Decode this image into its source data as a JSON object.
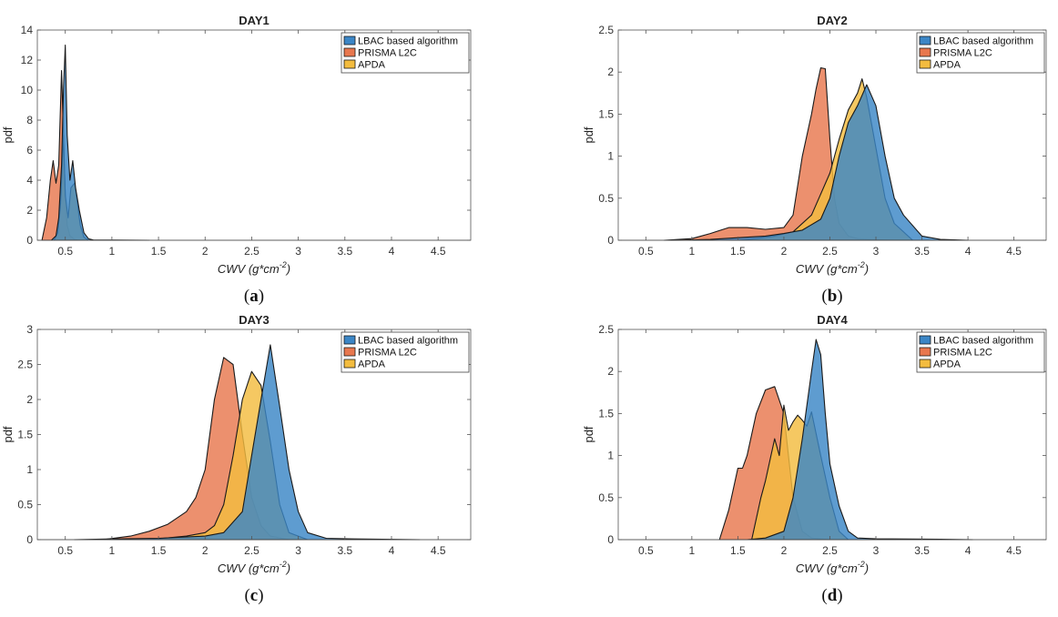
{
  "colors": {
    "lbac": "#3b86c6",
    "prisma": "#e8774e",
    "apda": "#f3bc3f",
    "outline": "#1a1a1a",
    "axis": "#555555"
  },
  "chart_data": [
    {
      "type": "area",
      "panel": "a",
      "caption": "(a)",
      "title": "DAY1",
      "xlabel": "CWV (g*cm",
      "xlabel_sup": "-2",
      "xlabel_close": ")",
      "ylabel": "pdf",
      "xlim": [
        0.2,
        4.85
      ],
      "ylim": [
        0,
        14
      ],
      "xticks": [
        0.5,
        1,
        1.5,
        2,
        2.5,
        3,
        3.5,
        4,
        4.5
      ],
      "xtick_labels": [
        "0.5",
        "1",
        "1.5",
        "2",
        "2.5",
        "3",
        "3.5",
        "4",
        "4.5"
      ],
      "yticks": [
        0,
        2,
        4,
        6,
        8,
        10,
        12,
        14
      ],
      "ytick_labels": [
        "0",
        "2",
        "4",
        "6",
        "8",
        "10",
        "12",
        "14"
      ],
      "legend_position": "top-right",
      "series": [
        {
          "key": "lbac",
          "name": "LBAC based algorithm",
          "x": [
            0.35,
            0.4,
            0.43,
            0.46,
            0.48,
            0.5,
            0.52,
            0.55,
            0.58,
            0.61,
            0.65,
            0.7,
            0.75,
            0.8,
            1.0,
            1.4
          ],
          "y": [
            0,
            0.3,
            1.5,
            5,
            10,
            13,
            7,
            4,
            5.3,
            3.5,
            2,
            0.5,
            0.1,
            0.02,
            0.01,
            0
          ]
        },
        {
          "key": "prisma",
          "name": "PRISMA L2C",
          "x": [
            0.25,
            0.3,
            0.34,
            0.37,
            0.4,
            0.43,
            0.46,
            0.48,
            0.5,
            0.52,
            0.55,
            0.6,
            0.65
          ],
          "y": [
            0,
            1.5,
            4,
            5.3,
            3.8,
            5,
            11.3,
            7,
            3,
            1,
            0.3,
            0.05,
            0
          ]
        },
        {
          "key": "apda",
          "name": "APDA",
          "x": [
            0.38,
            0.42,
            0.45,
            0.48,
            0.5,
            0.53,
            0.56,
            0.6,
            0.63,
            0.66,
            0.7,
            0.75
          ],
          "y": [
            0,
            0.5,
            2.5,
            7,
            3,
            1.5,
            3.5,
            3.8,
            2.5,
            1,
            0.2,
            0
          ]
        }
      ]
    },
    {
      "type": "area",
      "panel": "b",
      "caption": "(b)",
      "title": "DAY2",
      "xlabel": "CWV (g*cm",
      "xlabel_sup": "-2",
      "xlabel_close": ")",
      "ylabel": "pdf",
      "xlim": [
        0.2,
        4.85
      ],
      "ylim": [
        0,
        2.5
      ],
      "xticks": [
        0.5,
        1,
        1.5,
        2,
        2.5,
        3,
        3.5,
        4,
        4.5
      ],
      "xtick_labels": [
        "0.5",
        "1",
        "1.5",
        "2",
        "2.5",
        "3",
        "3.5",
        "4",
        "4.5"
      ],
      "yticks": [
        0,
        0.5,
        1,
        1.5,
        2,
        2.5
      ],
      "ytick_labels": [
        "0",
        "0.5",
        "1",
        "1.5",
        "2",
        "2.5"
      ],
      "legend_position": "top-right",
      "series": [
        {
          "key": "lbac",
          "name": "LBAC based algorithm",
          "x": [
            0.8,
            1.2,
            1.5,
            1.8,
            2.0,
            2.2,
            2.4,
            2.5,
            2.6,
            2.7,
            2.8,
            2.9,
            3.0,
            3.1,
            3.2,
            3.3,
            3.5,
            3.7,
            4.0
          ],
          "y": [
            0,
            0.01,
            0.03,
            0.05,
            0.08,
            0.12,
            0.25,
            0.5,
            1.0,
            1.4,
            1.6,
            1.85,
            1.6,
            1.0,
            0.5,
            0.3,
            0.05,
            0.01,
            0
          ]
        },
        {
          "key": "prisma",
          "name": "PRISMA L2C",
          "x": [
            0.7,
            1.0,
            1.2,
            1.4,
            1.6,
            1.8,
            2.0,
            2.1,
            2.2,
            2.3,
            2.35,
            2.4,
            2.45,
            2.5,
            2.55,
            2.6,
            2.7,
            2.8,
            3.0,
            3.2
          ],
          "y": [
            0,
            0.02,
            0.08,
            0.15,
            0.15,
            0.13,
            0.15,
            0.3,
            1.0,
            1.5,
            1.8,
            2.05,
            2.04,
            1.2,
            0.5,
            0.2,
            0.05,
            0.02,
            0.005,
            0
          ]
        },
        {
          "key": "apda",
          "name": "APDA",
          "x": [
            1.5,
            1.7,
            1.9,
            2.1,
            2.3,
            2.5,
            2.6,
            2.7,
            2.8,
            2.85,
            2.9,
            3.0,
            3.1,
            3.2,
            3.4
          ],
          "y": [
            0,
            0.02,
            0.05,
            0.1,
            0.3,
            0.8,
            1.2,
            1.55,
            1.75,
            1.92,
            1.7,
            1.1,
            0.5,
            0.2,
            0
          ]
        }
      ]
    },
    {
      "type": "area",
      "panel": "c",
      "caption": "(c)",
      "title": "DAY3",
      "xlabel": "CWV (g*cm",
      "xlabel_sup": "-2",
      "xlabel_close": ")",
      "ylabel": "pdf",
      "xlim": [
        0.2,
        4.85
      ],
      "ylim": [
        0,
        3
      ],
      "xticks": [
        0.5,
        1,
        1.5,
        2,
        2.5,
        3,
        3.5,
        4,
        4.5
      ],
      "xtick_labels": [
        "0.5",
        "1",
        "1.5",
        "2",
        "2.5",
        "3",
        "3.5",
        "4",
        "4.5"
      ],
      "yticks": [
        0,
        0.5,
        1,
        1.5,
        2,
        2.5,
        3
      ],
      "ytick_labels": [
        "0",
        "0.5",
        "1",
        "1.5",
        "2",
        "2.5",
        "3"
      ],
      "legend_position": "top-right",
      "series": [
        {
          "key": "lbac",
          "name": "LBAC based algorithm",
          "x": [
            0.6,
            1.0,
            1.5,
            2.0,
            2.2,
            2.4,
            2.5,
            2.6,
            2.7,
            2.8,
            2.9,
            3.0,
            3.1,
            3.3,
            3.6,
            4.3
          ],
          "y": [
            0,
            0.01,
            0.02,
            0.05,
            0.1,
            0.4,
            1.2,
            2.0,
            2.78,
            1.9,
            1.0,
            0.4,
            0.1,
            0.02,
            0.01,
            0
          ]
        },
        {
          "key": "prisma",
          "name": "PRISMA L2C",
          "x": [
            0.9,
            1.2,
            1.4,
            1.6,
            1.8,
            1.9,
            2.0,
            2.1,
            2.2,
            2.3,
            2.4,
            2.5,
            2.6,
            2.7,
            2.9
          ],
          "y": [
            0,
            0.05,
            0.12,
            0.22,
            0.4,
            0.6,
            1.0,
            2.0,
            2.6,
            2.5,
            1.5,
            0.6,
            0.2,
            0.05,
            0
          ]
        },
        {
          "key": "apda",
          "name": "APDA",
          "x": [
            1.4,
            1.8,
            2.0,
            2.1,
            2.2,
            2.3,
            2.4,
            2.5,
            2.6,
            2.7,
            2.8,
            2.9,
            3.1
          ],
          "y": [
            0,
            0.05,
            0.1,
            0.2,
            0.5,
            1.2,
            2.0,
            2.4,
            2.2,
            1.4,
            0.5,
            0.1,
            0
          ]
        }
      ]
    },
    {
      "type": "area",
      "panel": "d",
      "caption": "(d)",
      "title": "DAY4",
      "xlabel": "CWV (g*cm",
      "xlabel_sup": "-2",
      "xlabel_close": ")",
      "ylabel": "pdf",
      "xlim": [
        0.2,
        4.85
      ],
      "ylim": [
        0,
        2.5
      ],
      "xticks": [
        0.5,
        1,
        1.5,
        2,
        2.5,
        3,
        3.5,
        4,
        4.5
      ],
      "xtick_labels": [
        "0.5",
        "1",
        "1.5",
        "2",
        "2.5",
        "3",
        "3.5",
        "4",
        "4.5"
      ],
      "yticks": [
        0,
        0.5,
        1,
        1.5,
        2,
        2.5
      ],
      "ytick_labels": [
        "0",
        "0.5",
        "1",
        "1.5",
        "2",
        "2.5"
      ],
      "legend_position": "top-right",
      "series": [
        {
          "key": "lbac",
          "name": "LBAC based algorithm",
          "x": [
            1.6,
            1.8,
            2.0,
            2.1,
            2.2,
            2.3,
            2.35,
            2.4,
            2.45,
            2.5,
            2.6,
            2.7,
            2.8,
            3.0,
            3.7,
            4.05
          ],
          "y": [
            0,
            0.02,
            0.1,
            0.5,
            1.2,
            2.0,
            2.38,
            2.2,
            1.5,
            0.9,
            0.4,
            0.1,
            0.02,
            0.01,
            0.005,
            0
          ]
        },
        {
          "key": "prisma",
          "name": "PRISMA L2C",
          "x": [
            1.3,
            1.4,
            1.5,
            1.55,
            1.6,
            1.7,
            1.8,
            1.9,
            2.0,
            2.1,
            2.2,
            2.3,
            2.5
          ],
          "y": [
            0,
            0.35,
            0.85,
            0.85,
            1.0,
            1.5,
            1.78,
            1.82,
            1.5,
            0.5,
            0.1,
            0.02,
            0
          ]
        },
        {
          "key": "apda",
          "name": "APDA",
          "x": [
            1.65,
            1.75,
            1.8,
            1.9,
            1.95,
            2.0,
            2.05,
            2.1,
            2.15,
            2.2,
            2.25,
            2.3,
            2.4,
            2.5,
            2.6,
            2.7
          ],
          "y": [
            0,
            0.5,
            0.7,
            1.2,
            1.0,
            1.6,
            1.3,
            1.4,
            1.48,
            1.42,
            1.35,
            1.52,
            1.0,
            0.5,
            0.1,
            0
          ]
        }
      ]
    }
  ]
}
